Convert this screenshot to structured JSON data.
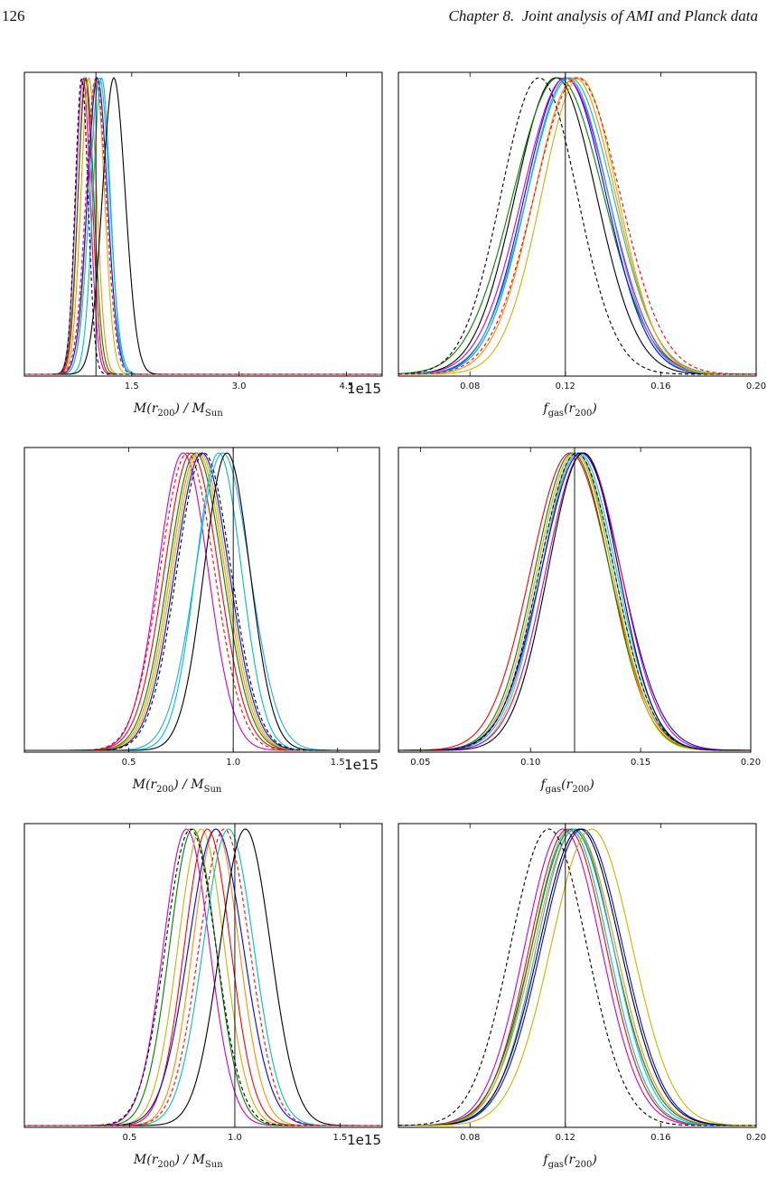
{
  "header": {
    "page_number": "126",
    "chapter_label": "Chapter 8.",
    "chapter_title": "Joint analysis of AMI and Planck data"
  },
  "figure": {
    "mass_series_colors": [
      "#cc00cc",
      "#ff0000",
      "#008000",
      "#ff8c00",
      "#c8b400",
      "#0000ff",
      "#22a7ff",
      "#00bfbf",
      "#000000"
    ],
    "fgas_series_colors": [
      "#ff0000",
      "#cc00cc",
      "#008000",
      "#ff8c00",
      "#c8b400",
      "#0000ff",
      "#22a7ff",
      "#00bfbf",
      "#000000"
    ]
  },
  "chart_data": [
    {
      "type": "line",
      "panel": "row1-left",
      "xlabel": "M(r_200) / M_Sun",
      "offset_text": "1e15",
      "xlim": [
        0.0,
        5.0
      ],
      "vline": 1.0,
      "ylim": [
        0.0,
        1.0
      ],
      "xticks": [
        1.5,
        3.0,
        4.5
      ],
      "xtick_labels": [
        "1.5",
        "3.0",
        "4.5"
      ],
      "series": [
        {
          "color": "#cc00cc",
          "mu": 0.82,
          "sigma": 0.1
        },
        {
          "color": "#ff0000",
          "mu": 0.85,
          "sigma": 0.1
        },
        {
          "color": "#008000",
          "mu": 0.86,
          "sigma": 0.11
        },
        {
          "color": "#ff8c00",
          "mu": 0.9,
          "sigma": 0.11
        },
        {
          "color": "#c8b400",
          "mu": 1.0,
          "sigma": 0.12
        },
        {
          "color": "#0000ff",
          "mu": 1.02,
          "sigma": 0.14
        },
        {
          "color": "#22a7ff",
          "mu": 1.05,
          "sigma": 0.14
        },
        {
          "color": "#00bfbf",
          "mu": 1.08,
          "sigma": 0.12
        },
        {
          "color": "#000000",
          "mu": 1.25,
          "sigma": 0.16
        },
        {
          "color": "#000000",
          "mu": 0.8,
          "sigma": 0.09,
          "dashed": true
        },
        {
          "color": "#ff0000",
          "mu": 1.0,
          "sigma": 0.14,
          "dashed": true
        }
      ]
    },
    {
      "type": "line",
      "panel": "row1-right",
      "xlabel": "f_gas(r_200)",
      "xlim": [
        0.05,
        0.2
      ],
      "vline": 0.12,
      "ylim": [
        0.0,
        1.0
      ],
      "xticks": [
        0.08,
        0.12,
        0.16,
        0.2
      ],
      "xtick_labels": [
        "0.08",
        "0.12",
        "0.16",
        "0.20"
      ],
      "series": [
        {
          "color": "#000000",
          "mu": 0.116,
          "sigma": 0.017
        },
        {
          "color": "#008000",
          "mu": 0.117,
          "sigma": 0.019
        },
        {
          "color": "#0000ff",
          "mu": 0.12,
          "sigma": 0.017
        },
        {
          "color": "#cc00cc",
          "mu": 0.12,
          "sigma": 0.018
        },
        {
          "color": "#ff0000",
          "mu": 0.121,
          "sigma": 0.017
        },
        {
          "color": "#00bfbf",
          "mu": 0.122,
          "sigma": 0.018
        },
        {
          "color": "#22a7ff",
          "mu": 0.121,
          "sigma": 0.017
        },
        {
          "color": "#ff8c00",
          "mu": 0.124,
          "sigma": 0.017
        },
        {
          "color": "#c8b400",
          "mu": 0.126,
          "sigma": 0.016
        },
        {
          "color": "#000000",
          "mu": 0.109,
          "sigma": 0.016,
          "dashed": true
        },
        {
          "color": "#ff0000",
          "mu": 0.125,
          "sigma": 0.018,
          "dashed": true
        }
      ]
    },
    {
      "type": "line",
      "panel": "row2-left",
      "xlabel": "M(r_200) / M_Sun",
      "offset_text": "1e15",
      "xlim": [
        0.0,
        1.7
      ],
      "vline": 1.0,
      "ylim": [
        0.0,
        1.0
      ],
      "xticks": [
        0.5,
        1.0,
        1.5
      ],
      "xtick_labels": [
        "0.5",
        "1.0",
        "1.5"
      ],
      "series": [
        {
          "color": "#cc00cc",
          "mu": 0.76,
          "sigma": 0.12
        },
        {
          "color": "#ff0000",
          "mu": 0.8,
          "sigma": 0.13
        },
        {
          "color": "#008000",
          "mu": 0.82,
          "sigma": 0.13
        },
        {
          "color": "#ff8c00",
          "mu": 0.83,
          "sigma": 0.13
        },
        {
          "color": "#c8b400",
          "mu": 0.84,
          "sigma": 0.13
        },
        {
          "color": "#0000ff",
          "mu": 0.85,
          "sigma": 0.13
        },
        {
          "color": "#22a7ff",
          "mu": 0.95,
          "sigma": 0.13
        },
        {
          "color": "#00bfbf",
          "mu": 0.93,
          "sigma": 0.11
        },
        {
          "color": "#000000",
          "mu": 0.97,
          "sigma": 0.11
        },
        {
          "color": "#ff0000",
          "mu": 0.78,
          "sigma": 0.13,
          "dashed": true
        },
        {
          "color": "#000000",
          "mu": 0.86,
          "sigma": 0.13,
          "dashed": true
        }
      ]
    },
    {
      "type": "line",
      "panel": "row2-right",
      "xlabel": "f_gas(r_200)",
      "xlim": [
        0.04,
        0.2
      ],
      "vline": 0.12,
      "ylim": [
        0.0,
        1.0
      ],
      "xticks": [
        0.05,
        0.1,
        0.15,
        0.2
      ],
      "xtick_labels": [
        "0.05",
        "0.10",
        "0.15",
        "0.20"
      ],
      "series": [
        {
          "color": "#ff0000",
          "mu": 0.118,
          "sigma": 0.018
        },
        {
          "color": "#008000",
          "mu": 0.119,
          "sigma": 0.017
        },
        {
          "color": "#ff8c00",
          "mu": 0.12,
          "sigma": 0.017
        },
        {
          "color": "#c8b400",
          "mu": 0.121,
          "sigma": 0.016
        },
        {
          "color": "#00bfbf",
          "mu": 0.121,
          "sigma": 0.017
        },
        {
          "color": "#22a7ff",
          "mu": 0.122,
          "sigma": 0.017
        },
        {
          "color": "#0000ff",
          "mu": 0.123,
          "sigma": 0.018
        },
        {
          "color": "#cc00cc",
          "mu": 0.124,
          "sigma": 0.017
        },
        {
          "color": "#000000",
          "mu": 0.124,
          "sigma": 0.016
        },
        {
          "color": "#000000",
          "mu": 0.121,
          "sigma": 0.017,
          "dashed": true
        }
      ]
    },
    {
      "type": "line",
      "panel": "row3-left",
      "xlabel": "M(r_200) / M_Sun",
      "offset_text": "1e15",
      "xlim": [
        0.0,
        1.7
      ],
      "vline": 1.0,
      "ylim": [
        0.0,
        1.0
      ],
      "xticks": [
        0.5,
        1.0,
        1.5
      ],
      "xtick_labels": [
        "0.5",
        "1.0",
        "1.5"
      ],
      "series": [
        {
          "color": "#cc00cc",
          "mu": 0.77,
          "sigma": 0.11
        },
        {
          "color": "#008000",
          "mu": 0.8,
          "sigma": 0.11
        },
        {
          "color": "#c8b400",
          "mu": 0.84,
          "sigma": 0.11
        },
        {
          "color": "#ff0000",
          "mu": 0.87,
          "sigma": 0.11
        },
        {
          "color": "#ff8c00",
          "mu": 0.91,
          "sigma": 0.11
        },
        {
          "color": "#0000ff",
          "mu": 0.91,
          "sigma": 0.13
        },
        {
          "color": "#00bfbf",
          "mu": 0.97,
          "sigma": 0.12
        },
        {
          "color": "#000000",
          "mu": 1.05,
          "sigma": 0.12
        },
        {
          "color": "#000000",
          "mu": 0.79,
          "sigma": 0.12,
          "dashed": true
        },
        {
          "color": "#ff0000",
          "mu": 0.95,
          "sigma": 0.12,
          "dashed": true
        }
      ]
    },
    {
      "type": "line",
      "panel": "row3-right",
      "xlabel": "f_gas(r_200)",
      "xlim": [
        0.05,
        0.2
      ],
      "vline": 0.12,
      "ylim": [
        0.0,
        1.0
      ],
      "xticks": [
        0.08,
        0.12,
        0.16,
        0.2
      ],
      "xtick_labels": [
        "0.08",
        "0.12",
        "0.16",
        "0.20"
      ],
      "series": [
        {
          "color": "#cc00cc",
          "mu": 0.119,
          "sigma": 0.016
        },
        {
          "color": "#ff0000",
          "mu": 0.121,
          "sigma": 0.016
        },
        {
          "color": "#00bfbf",
          "mu": 0.122,
          "sigma": 0.016
        },
        {
          "color": "#008000",
          "mu": 0.123,
          "sigma": 0.017
        },
        {
          "color": "#ff8c00",
          "mu": 0.124,
          "sigma": 0.017
        },
        {
          "color": "#22a7ff",
          "mu": 0.124,
          "sigma": 0.016
        },
        {
          "color": "#0000ff",
          "mu": 0.127,
          "sigma": 0.017
        },
        {
          "color": "#000000",
          "mu": 0.126,
          "sigma": 0.017
        },
        {
          "color": "#c8b400",
          "mu": 0.131,
          "sigma": 0.017
        },
        {
          "color": "#000000",
          "mu": 0.113,
          "sigma": 0.016,
          "dashed": true
        }
      ]
    }
  ]
}
